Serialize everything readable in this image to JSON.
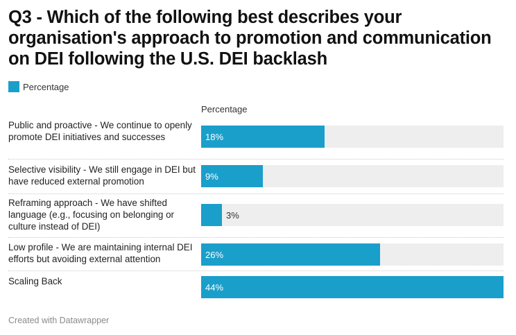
{
  "chart_data": {
    "type": "bar",
    "orientation": "horizontal",
    "title": "Q3 - Which of the following best describes your organisation's approach to promotion and communication on DEI following the U.S. DEI backlash",
    "legend": [
      "Percentage"
    ],
    "column_header": "Percentage",
    "categories": [
      "Public and proactive - We continue to openly promote DEI initiatives and successes",
      "Selective visibility - We still engage in DEI but have reduced external promotion",
      "Reframing approach - We have shifted language (e.g., focusing on belonging or culture instead of DEI)",
      "Low profile - We are maintaining internal DEI efforts but avoiding external attention",
      "Scaling Back"
    ],
    "values": [
      18,
      9,
      3,
      26,
      44
    ],
    "value_labels": [
      "18%",
      "9%",
      "3%",
      "26%",
      "44%"
    ],
    "xlim": [
      0,
      44
    ],
    "unit": "%",
    "color": "#1a9fcb",
    "track_color": "#eeeeee"
  },
  "footer": "Created with Datawrapper"
}
